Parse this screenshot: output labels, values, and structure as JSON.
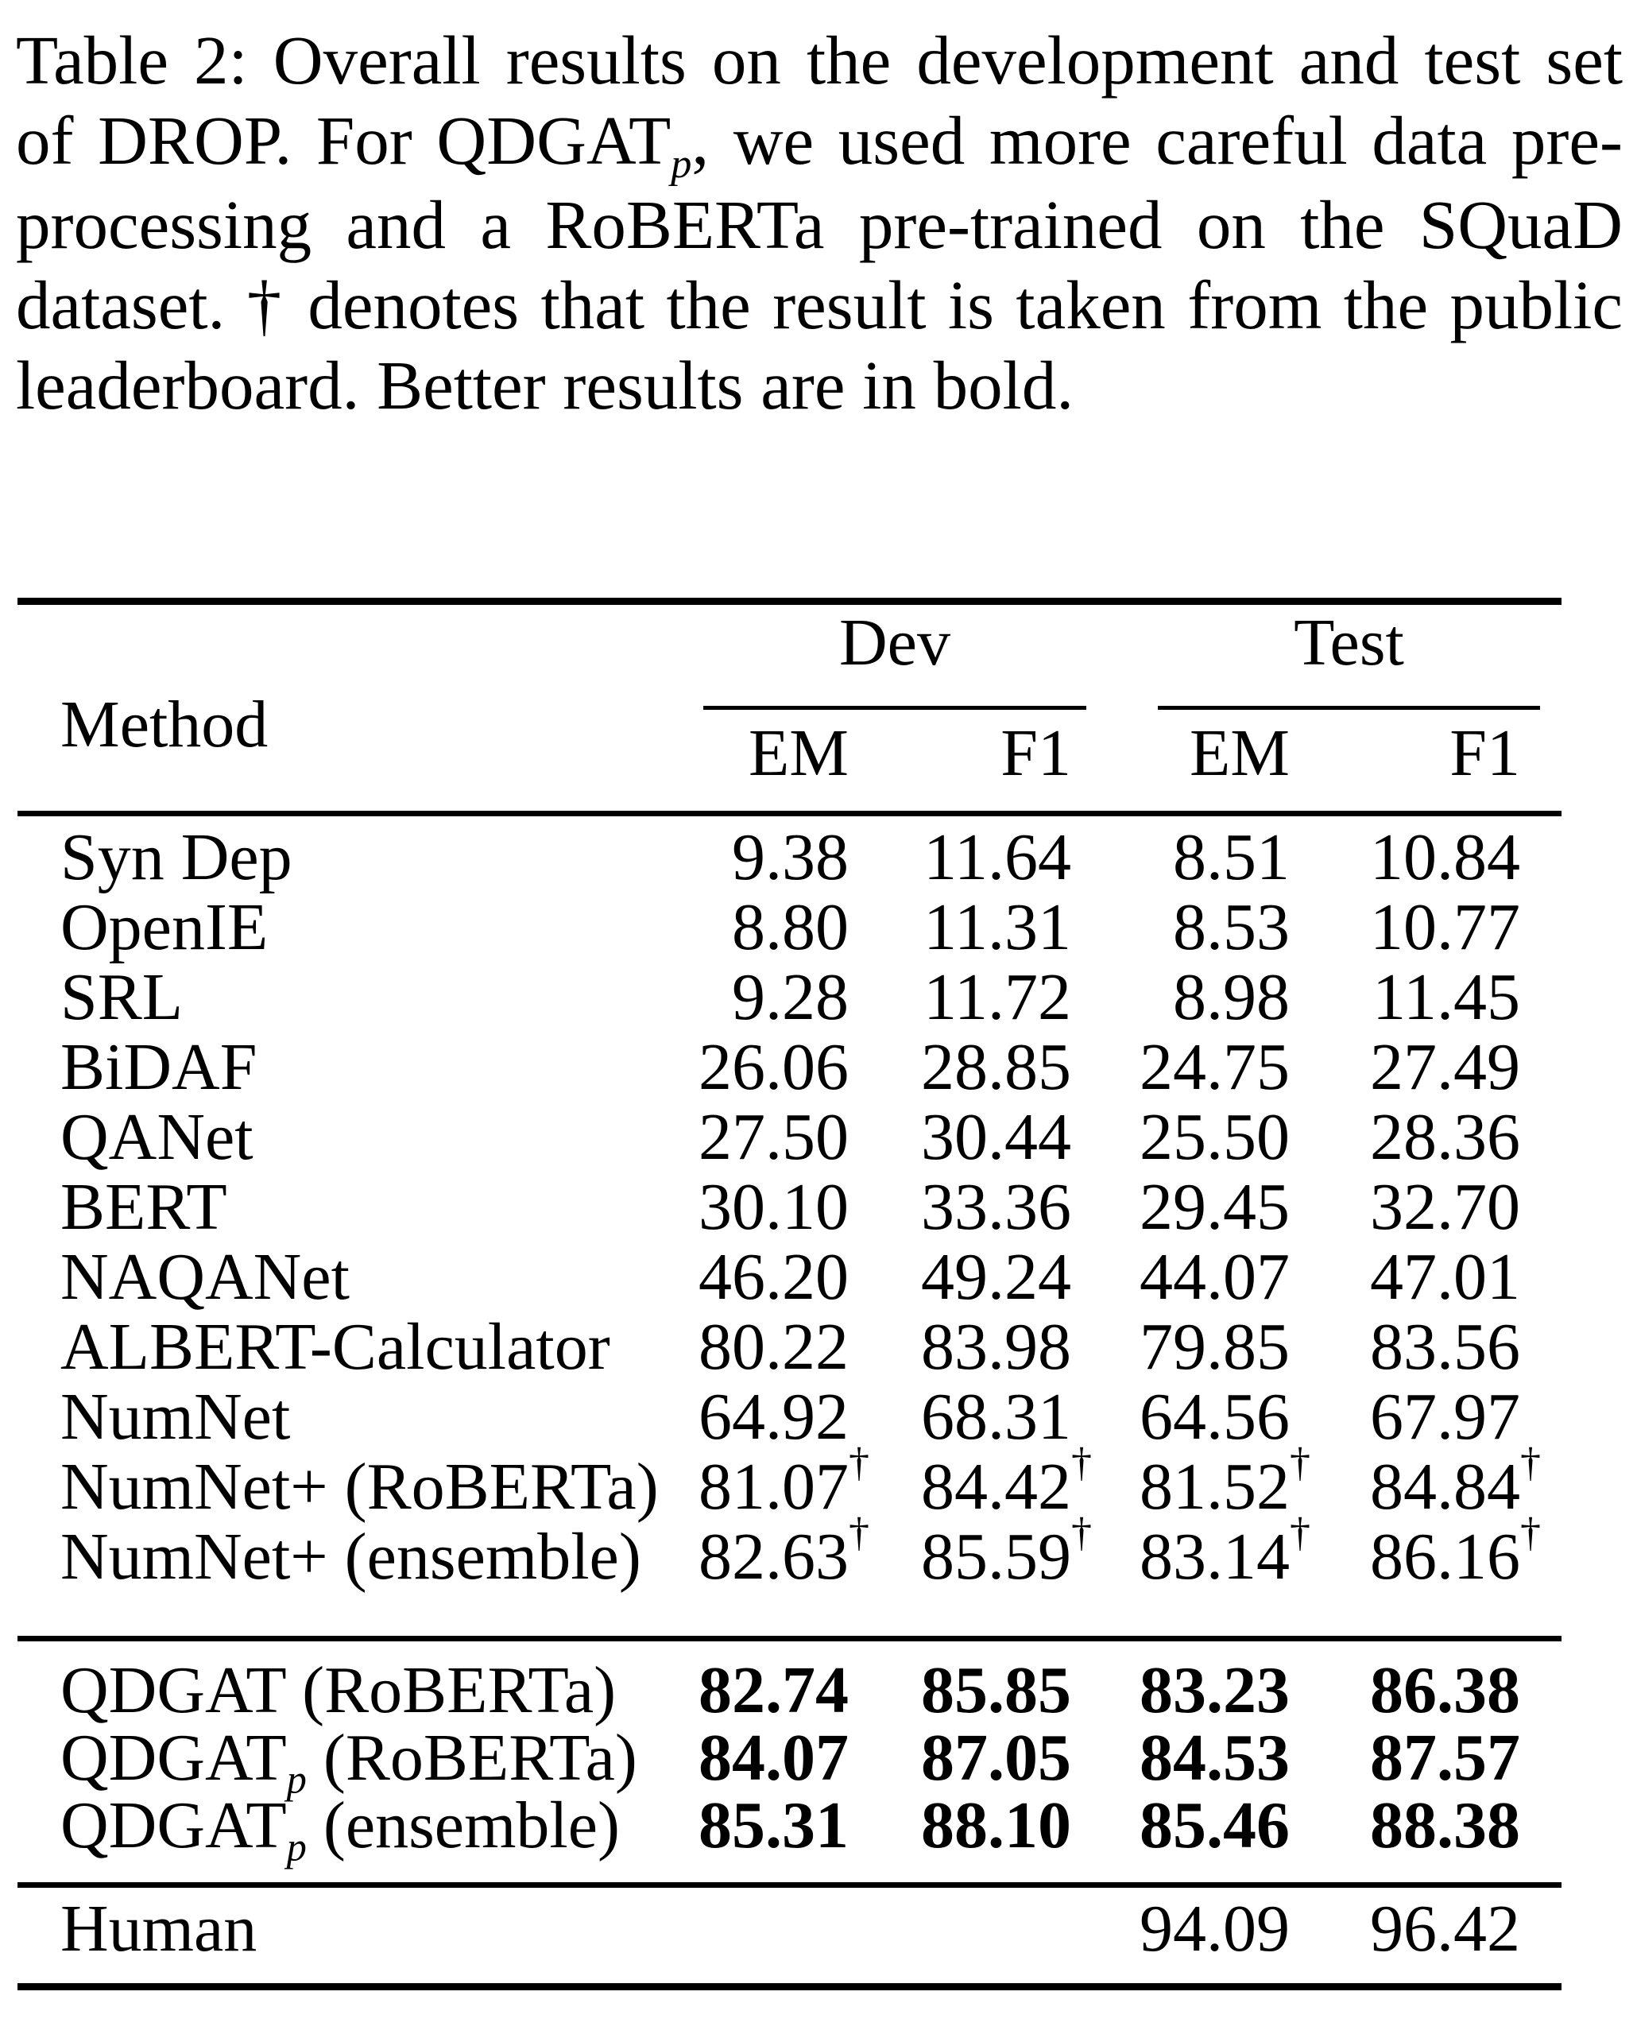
{
  "caption": {
    "lines": [
      {
        "segments": [
          {
            "t": "Table 2: Overall results on the development and test set"
          }
        ]
      },
      {
        "segments": [
          {
            "t": "of DROP. For QDGAT"
          },
          {
            "sub": "p"
          },
          {
            "t": ", we used more careful data pre-"
          }
        ]
      },
      {
        "segments": [
          {
            "t": "processing and a RoBERTa pre-trained on the SQuaD"
          }
        ]
      },
      {
        "segments": [
          {
            "t": "dataset. † denotes that the result is taken from the public"
          }
        ]
      },
      {
        "segments": [
          {
            "t": "leaderboard. Better results are in bold."
          }
        ]
      }
    ]
  },
  "table": {
    "header": {
      "method_label": "Method",
      "groups": [
        {
          "label": "Dev"
        },
        {
          "label": "Test"
        }
      ],
      "subcolumns": [
        "EM",
        "F1",
        "EM",
        "F1"
      ]
    },
    "sections": [
      {
        "bold": false,
        "rows": [
          {
            "method": [
              {
                "t": "Syn Dep"
              }
            ],
            "values": [
              {
                "v": "9.38"
              },
              {
                "v": "11.64"
              },
              {
                "v": "8.51"
              },
              {
                "v": "10.84"
              }
            ]
          },
          {
            "method": [
              {
                "t": "OpenIE"
              }
            ],
            "values": [
              {
                "v": "8.80"
              },
              {
                "v": "11.31"
              },
              {
                "v": "8.53"
              },
              {
                "v": "10.77"
              }
            ]
          },
          {
            "method": [
              {
                "t": "SRL"
              }
            ],
            "values": [
              {
                "v": "9.28"
              },
              {
                "v": "11.72"
              },
              {
                "v": "8.98"
              },
              {
                "v": "11.45"
              }
            ]
          },
          {
            "method": [
              {
                "t": "BiDAF"
              }
            ],
            "values": [
              {
                "v": "26.06"
              },
              {
                "v": "28.85"
              },
              {
                "v": "24.75"
              },
              {
                "v": "27.49"
              }
            ]
          },
          {
            "method": [
              {
                "t": "QANet"
              }
            ],
            "values": [
              {
                "v": "27.50"
              },
              {
                "v": "30.44"
              },
              {
                "v": "25.50"
              },
              {
                "v": "28.36"
              }
            ]
          },
          {
            "method": [
              {
                "t": "BERT"
              }
            ],
            "values": [
              {
                "v": "30.10"
              },
              {
                "v": "33.36"
              },
              {
                "v": "29.45"
              },
              {
                "v": "32.70"
              }
            ]
          },
          {
            "method": [
              {
                "t": "NAQANet"
              }
            ],
            "values": [
              {
                "v": "46.20"
              },
              {
                "v": "49.24"
              },
              {
                "v": "44.07"
              },
              {
                "v": "47.01"
              }
            ]
          },
          {
            "method": [
              {
                "t": "ALBERT-Calculator"
              }
            ],
            "values": [
              {
                "v": "80.22"
              },
              {
                "v": "83.98"
              },
              {
                "v": "79.85"
              },
              {
                "v": "83.56"
              }
            ]
          },
          {
            "method": [
              {
                "t": "NumNet"
              }
            ],
            "values": [
              {
                "v": "64.92"
              },
              {
                "v": "68.31"
              },
              {
                "v": "64.56"
              },
              {
                "v": "67.97"
              }
            ]
          },
          {
            "method": [
              {
                "t": "NumNet+ (RoBERTa)"
              }
            ],
            "values": [
              {
                "v": "81.07",
                "sup": "†"
              },
              {
                "v": "84.42",
                "sup": "†"
              },
              {
                "v": "81.52",
                "sup": "†"
              },
              {
                "v": "84.84",
                "sup": "†"
              }
            ]
          },
          {
            "method": [
              {
                "t": "NumNet+ (ensemble)"
              }
            ],
            "values": [
              {
                "v": "82.63",
                "sup": "†"
              },
              {
                "v": "85.59",
                "sup": "†"
              },
              {
                "v": "83.14",
                "sup": "†"
              },
              {
                "v": "86.16",
                "sup": "†"
              }
            ]
          }
        ]
      },
      {
        "bold": true,
        "rows": [
          {
            "method": [
              {
                "t": "QDGAT (RoBERTa)"
              }
            ],
            "values": [
              {
                "v": "82.74"
              },
              {
                "v": "85.85"
              },
              {
                "v": "83.23"
              },
              {
                "v": "86.38"
              }
            ]
          },
          {
            "method": [
              {
                "t": "QDGAT"
              },
              {
                "sub": "p"
              },
              {
                "t": " (RoBERTa)"
              }
            ],
            "values": [
              {
                "v": "84.07"
              },
              {
                "v": "87.05"
              },
              {
                "v": "84.53"
              },
              {
                "v": "87.57"
              }
            ]
          },
          {
            "method": [
              {
                "t": "QDGAT"
              },
              {
                "sub": "p"
              },
              {
                "t": " (ensemble)"
              }
            ],
            "values": [
              {
                "v": "85.31"
              },
              {
                "v": "88.10"
              },
              {
                "v": "85.46"
              },
              {
                "v": "88.38"
              }
            ]
          }
        ]
      },
      {
        "bold": false,
        "rows": [
          {
            "method": [
              {
                "t": "Human"
              }
            ],
            "values": [
              {
                "v": ""
              },
              {
                "v": ""
              },
              {
                "v": "94.09"
              },
              {
                "v": "96.42"
              }
            ]
          }
        ]
      }
    ]
  }
}
